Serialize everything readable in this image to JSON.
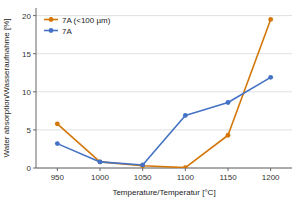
{
  "chart_data": {
    "type": "line",
    "x": [
      950,
      1000,
      1050,
      1100,
      1150,
      1200
    ],
    "series": [
      {
        "name": "7A (<100 µm)",
        "color": "#D4770A",
        "values": [
          5.8,
          0.8,
          0.3,
          0.05,
          4.3,
          19.5
        ],
        "marker": "circle"
      },
      {
        "name": "7A",
        "color": "#4472C4",
        "values": [
          3.2,
          0.8,
          0.4,
          6.9,
          8.6,
          11.9
        ],
        "marker": "circle"
      }
    ],
    "xlabel": "Temperature/Temperatur [°C]",
    "ylabel": "Water absorption/Wasseraufnahme [%]",
    "xlim": [
      925,
      1225
    ],
    "ylim": [
      0,
      21
    ],
    "xticks": [
      950,
      1000,
      1050,
      1100,
      1150,
      1200
    ],
    "yticks": [
      0,
      5,
      10,
      15,
      20
    ],
    "grid": true,
    "legend": "upper left"
  }
}
